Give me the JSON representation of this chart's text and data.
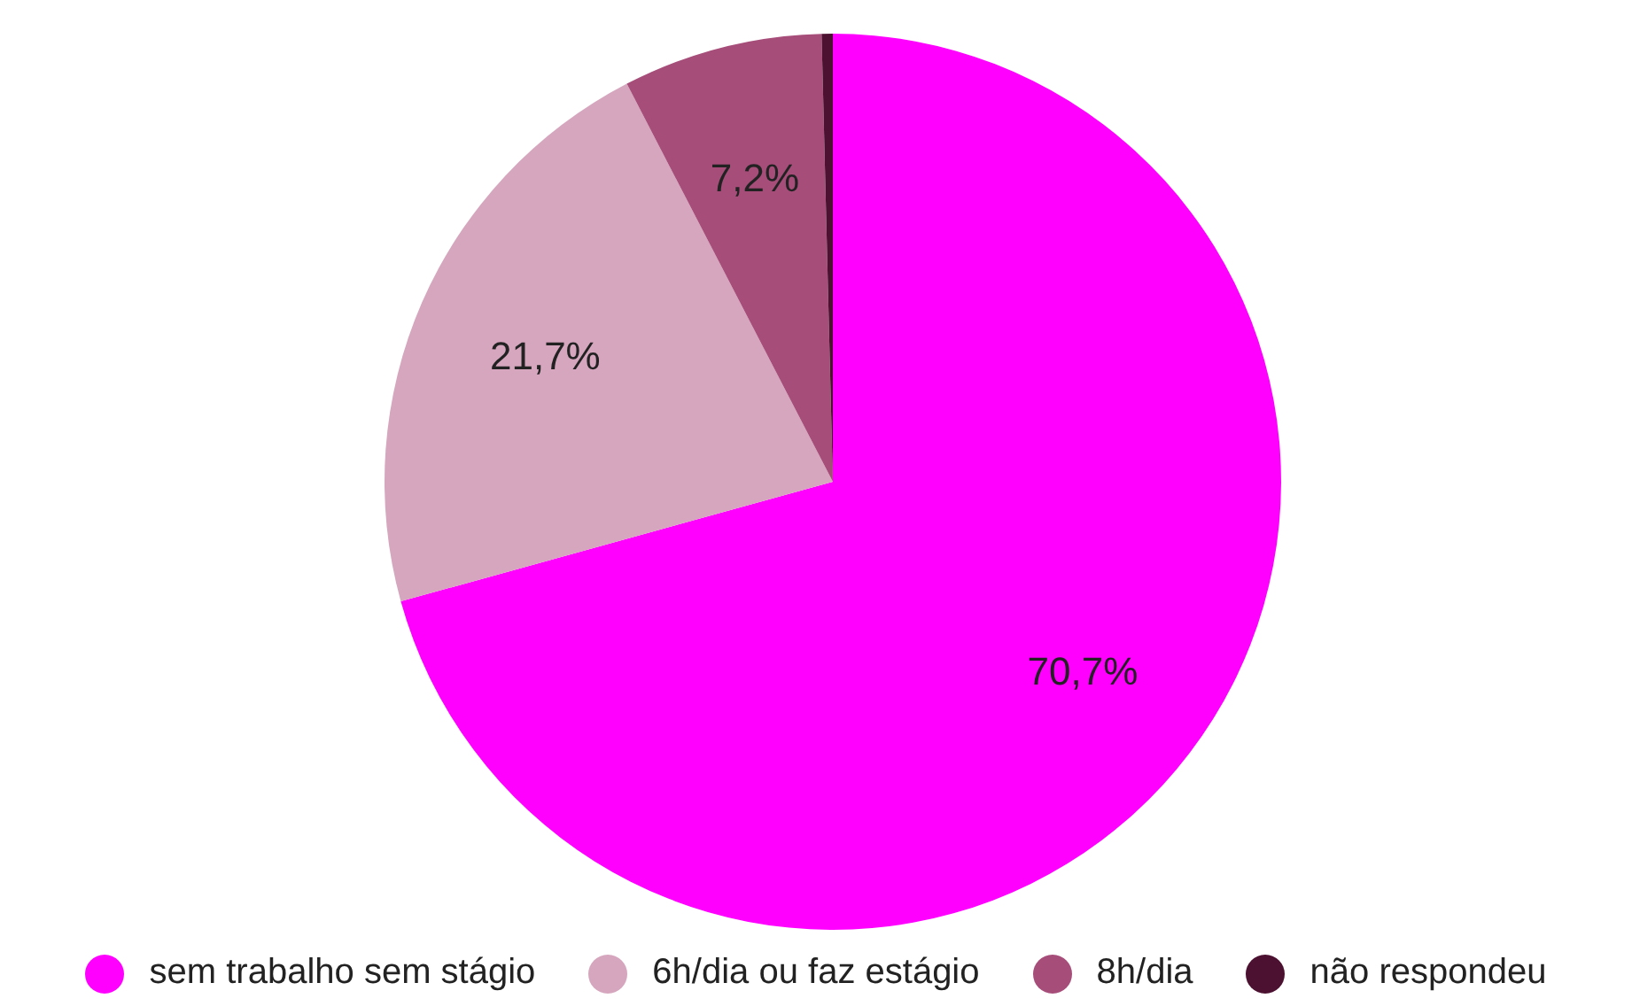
{
  "chart_data": {
    "type": "pie",
    "categories": [
      "sem trabalho sem stágio",
      "6h/dia ou faz estágio",
      "8h/dia",
      "não respondeu"
    ],
    "values": [
      70.7,
      21.7,
      7.2,
      0.4
    ],
    "colors": [
      "#ff00ff",
      "#d5a6bd",
      "#a64d79",
      "#4c1130"
    ],
    "value_labels": [
      "70,7%",
      "21,7%",
      "7,2%",
      null
    ],
    "legend": "bottom"
  }
}
